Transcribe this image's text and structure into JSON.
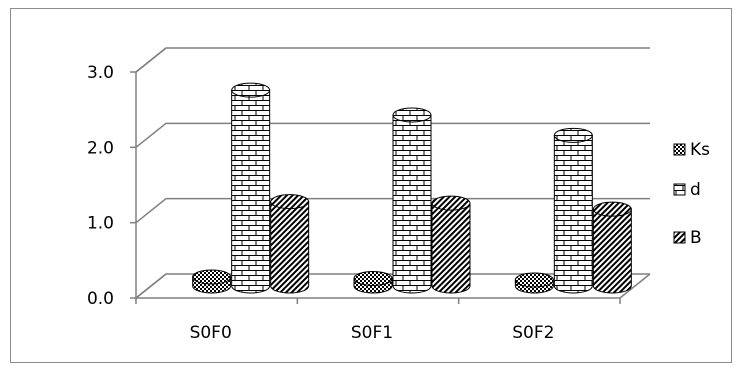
{
  "chart_data": {
    "type": "bar",
    "style": "3d-cylinder",
    "categories": [
      "S0F0",
      "S0F1",
      "S0F2"
    ],
    "series": [
      {
        "name": "Ks",
        "values": [
          0.12,
          0.1,
          0.08
        ],
        "pattern": "checker"
      },
      {
        "name": "d",
        "values": [
          2.6,
          2.27,
          2.0
        ],
        "pattern": "brick"
      },
      {
        "name": "B",
        "values": [
          1.12,
          1.1,
          1.02
        ],
        "pattern": "diagonal"
      }
    ],
    "y_ticks": [
      "0.0",
      "1.0",
      "2.0",
      "3.0"
    ],
    "ylim": [
      0,
      3
    ],
    "grid": true,
    "legend_position": "right",
    "title": "",
    "xlabel": "",
    "ylabel": "",
    "colors": {
      "ink": "#000000",
      "grid": "#808080",
      "fill": "#ffffff"
    }
  }
}
